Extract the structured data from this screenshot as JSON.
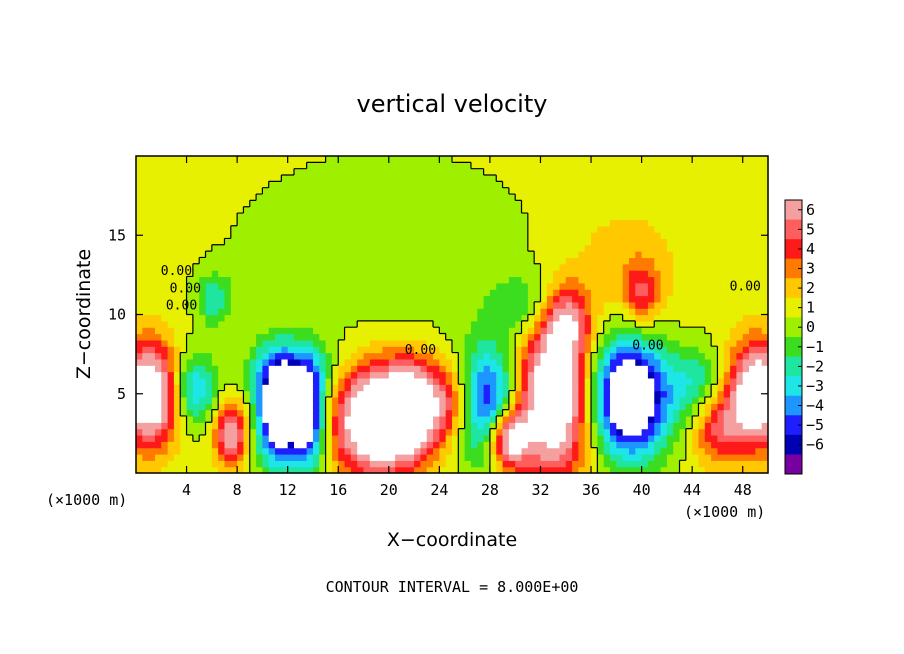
{
  "chart_data": {
    "type": "heatmap",
    "title": "vertical velocity",
    "xlabel": "X−coordinate",
    "ylabel": "Z−coordinate",
    "x_unit_left": "(×1000 m)",
    "x_unit_right": "(×1000 m)",
    "xlim": [
      0,
      50
    ],
    "ylim": [
      0,
      20
    ],
    "x_ticks": [
      4,
      8,
      12,
      16,
      20,
      24,
      28,
      32,
      36,
      40,
      44,
      48
    ],
    "y_ticks": [
      5,
      10,
      15
    ],
    "colorbar": {
      "levels": [
        6,
        5,
        4,
        3,
        2,
        1,
        0,
        -1,
        -2,
        -3,
        -4,
        -5,
        -6
      ],
      "tick_labels": [
        "6",
        "5",
        "4",
        "3",
        "2",
        "1",
        "0",
        "−1",
        "−2",
        "−3",
        "−4",
        "−5",
        "−6"
      ],
      "colors": [
        "#f4a0a0",
        "#ff5e5e",
        "#ff1a1a",
        "#ff7a00",
        "#ffc800",
        "#e6f000",
        "#9ef000",
        "#3cdc1e",
        "#1ee6a0",
        "#1ee6e6",
        "#1e96ff",
        "#1e1eff",
        "#0000b4",
        "#7800a0"
      ]
    },
    "contour_interval": "CONTOUR INTERVAL = 8.000E+00",
    "contour_labels": [
      "0.00",
      "0.00",
      "0.00",
      "0.00",
      "0.00",
      "0.00"
    ],
    "features": [
      {
        "x": 1.0,
        "z": 5.0,
        "w": 9,
        "sx": 1.6,
        "sz": 2.2
      },
      {
        "x": 49.2,
        "z": 5.0,
        "w": 9,
        "sx": 1.6,
        "sz": 2.2
      },
      {
        "x": 4.6,
        "z": 5.3,
        "w": -4.5,
        "sx": 1.3,
        "sz": 1.6
      },
      {
        "x": 7.5,
        "z": 2.6,
        "w": 6,
        "sx": 0.9,
        "sz": 1.4
      },
      {
        "x": 6.2,
        "z": 11.0,
        "w": -3,
        "sx": 1.0,
        "sz": 1.2
      },
      {
        "x": 11.2,
        "z": 3.8,
        "w": -9,
        "sx": 1.2,
        "sz": 2.4
      },
      {
        "x": 13.6,
        "z": 3.6,
        "w": -8,
        "sx": 1.0,
        "sz": 2.3
      },
      {
        "x": 12.4,
        "z": 6.5,
        "w": -3,
        "sx": 2.5,
        "sz": 1.4
      },
      {
        "x": 19.0,
        "z": 3.4,
        "w": 10,
        "sx": 2.3,
        "sz": 2.3
      },
      {
        "x": 22.0,
        "z": 4.2,
        "w": 7,
        "sx": 1.6,
        "sz": 2.0
      },
      {
        "x": 25.0,
        "z": 4.5,
        "w": 3,
        "sx": 1.3,
        "sz": 1.6
      },
      {
        "x": 28.0,
        "z": 4.4,
        "w": -7,
        "sx": 1.7,
        "sz": 2.6
      },
      {
        "x": 29.4,
        "z": 2.2,
        "w": 8,
        "sx": 1.1,
        "sz": 1.3
      },
      {
        "x": 33.0,
        "z": 4.6,
        "w": 9,
        "sx": 2.2,
        "sz": 3.3
      },
      {
        "x": 34.0,
        "z": 9.5,
        "w": 5,
        "sx": 1.3,
        "sz": 1.6
      },
      {
        "x": 39.0,
        "z": 4.8,
        "w": -10,
        "sx": 2.3,
        "sz": 2.7
      },
      {
        "x": 40.0,
        "z": 11.3,
        "w": 3.5,
        "sx": 1.0,
        "sz": 1.4
      },
      {
        "x": 38.5,
        "z": 13.0,
        "w": 1.2,
        "sx": 3.5,
        "sz": 3.0
      },
      {
        "x": 44.5,
        "z": 5.5,
        "w": -3,
        "sx": 1.5,
        "sz": 1.7
      },
      {
        "x": 46.0,
        "z": 3.0,
        "w": 4,
        "sx": 1.5,
        "sz": 1.6
      },
      {
        "x": 31.0,
        "z": 10.5,
        "w": -2.5,
        "sx": 2.0,
        "sz": 1.5
      },
      {
        "x": 20.0,
        "z": 14.0,
        "w": -1.2,
        "sx": 8.0,
        "sz": 4.0
      }
    ]
  }
}
